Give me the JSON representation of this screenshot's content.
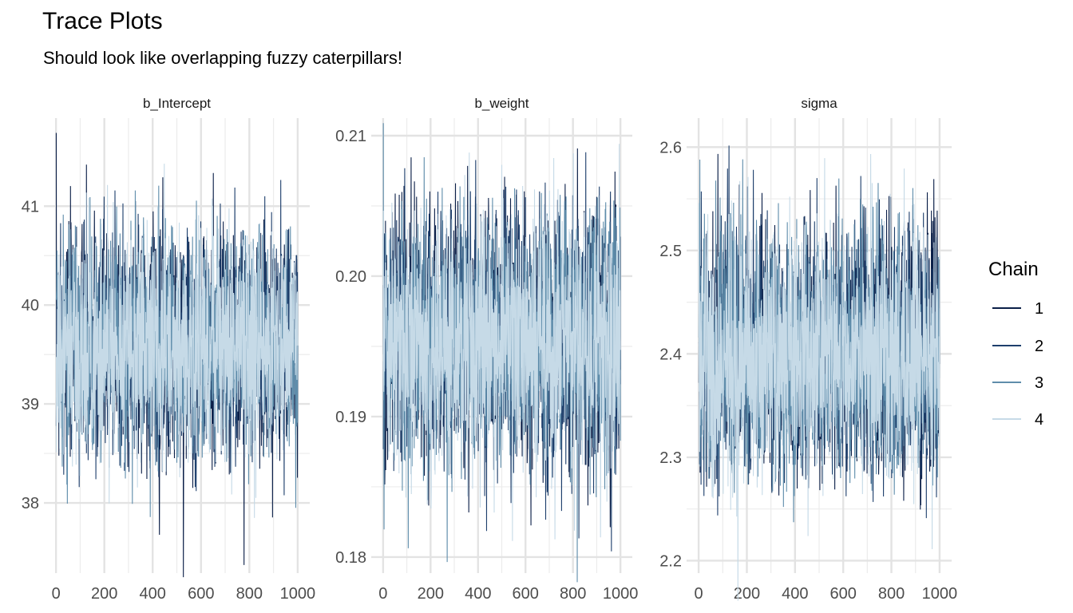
{
  "chart_data": {
    "type": "line",
    "title": "Trace Plots",
    "subtitle": "Should look like overlapping fuzzy caterpillars!",
    "iterations": 1000,
    "seed": 7,
    "legend": {
      "title": "Chain",
      "placement": "right",
      "items": [
        {
          "label": "1",
          "color": "#0b1f48"
        },
        {
          "label": "2",
          "color": "#1e3f6c"
        },
        {
          "label": "3",
          "color": "#5f8dab"
        },
        {
          "label": "4",
          "color": "#c6dae7"
        }
      ]
    },
    "xticks": [
      0,
      200,
      400,
      600,
      800,
      1000
    ],
    "xlim": [
      -50,
      1050
    ],
    "panels": [
      {
        "name": "b_Intercept",
        "mean": 39.6,
        "sd": 0.55,
        "ylim": [
          37.29,
          41.89
        ],
        "yticks": [
          38,
          39,
          40,
          41
        ],
        "ytick_labels": [
          "38",
          "39",
          "40",
          "41"
        ]
      },
      {
        "name": "b_weight",
        "mean": 0.1955,
        "sd": 0.0045,
        "ylim": [
          0.17886,
          0.21125
        ],
        "yticks": [
          0.18,
          0.19,
          0.2,
          0.21
        ],
        "ytick_labels": [
          "0.18",
          "0.19",
          "0.20",
          "0.21"
        ]
      },
      {
        "name": "sigma",
        "mean": 2.395,
        "sd": 0.055,
        "ylim": [
          2.188,
          2.628
        ],
        "yticks": [
          2.2,
          2.3,
          2.4,
          2.5,
          2.6
        ],
        "ytick_labels": [
          "2.2",
          "2.3",
          "2.4",
          "2.5",
          "2.6"
        ]
      }
    ]
  }
}
